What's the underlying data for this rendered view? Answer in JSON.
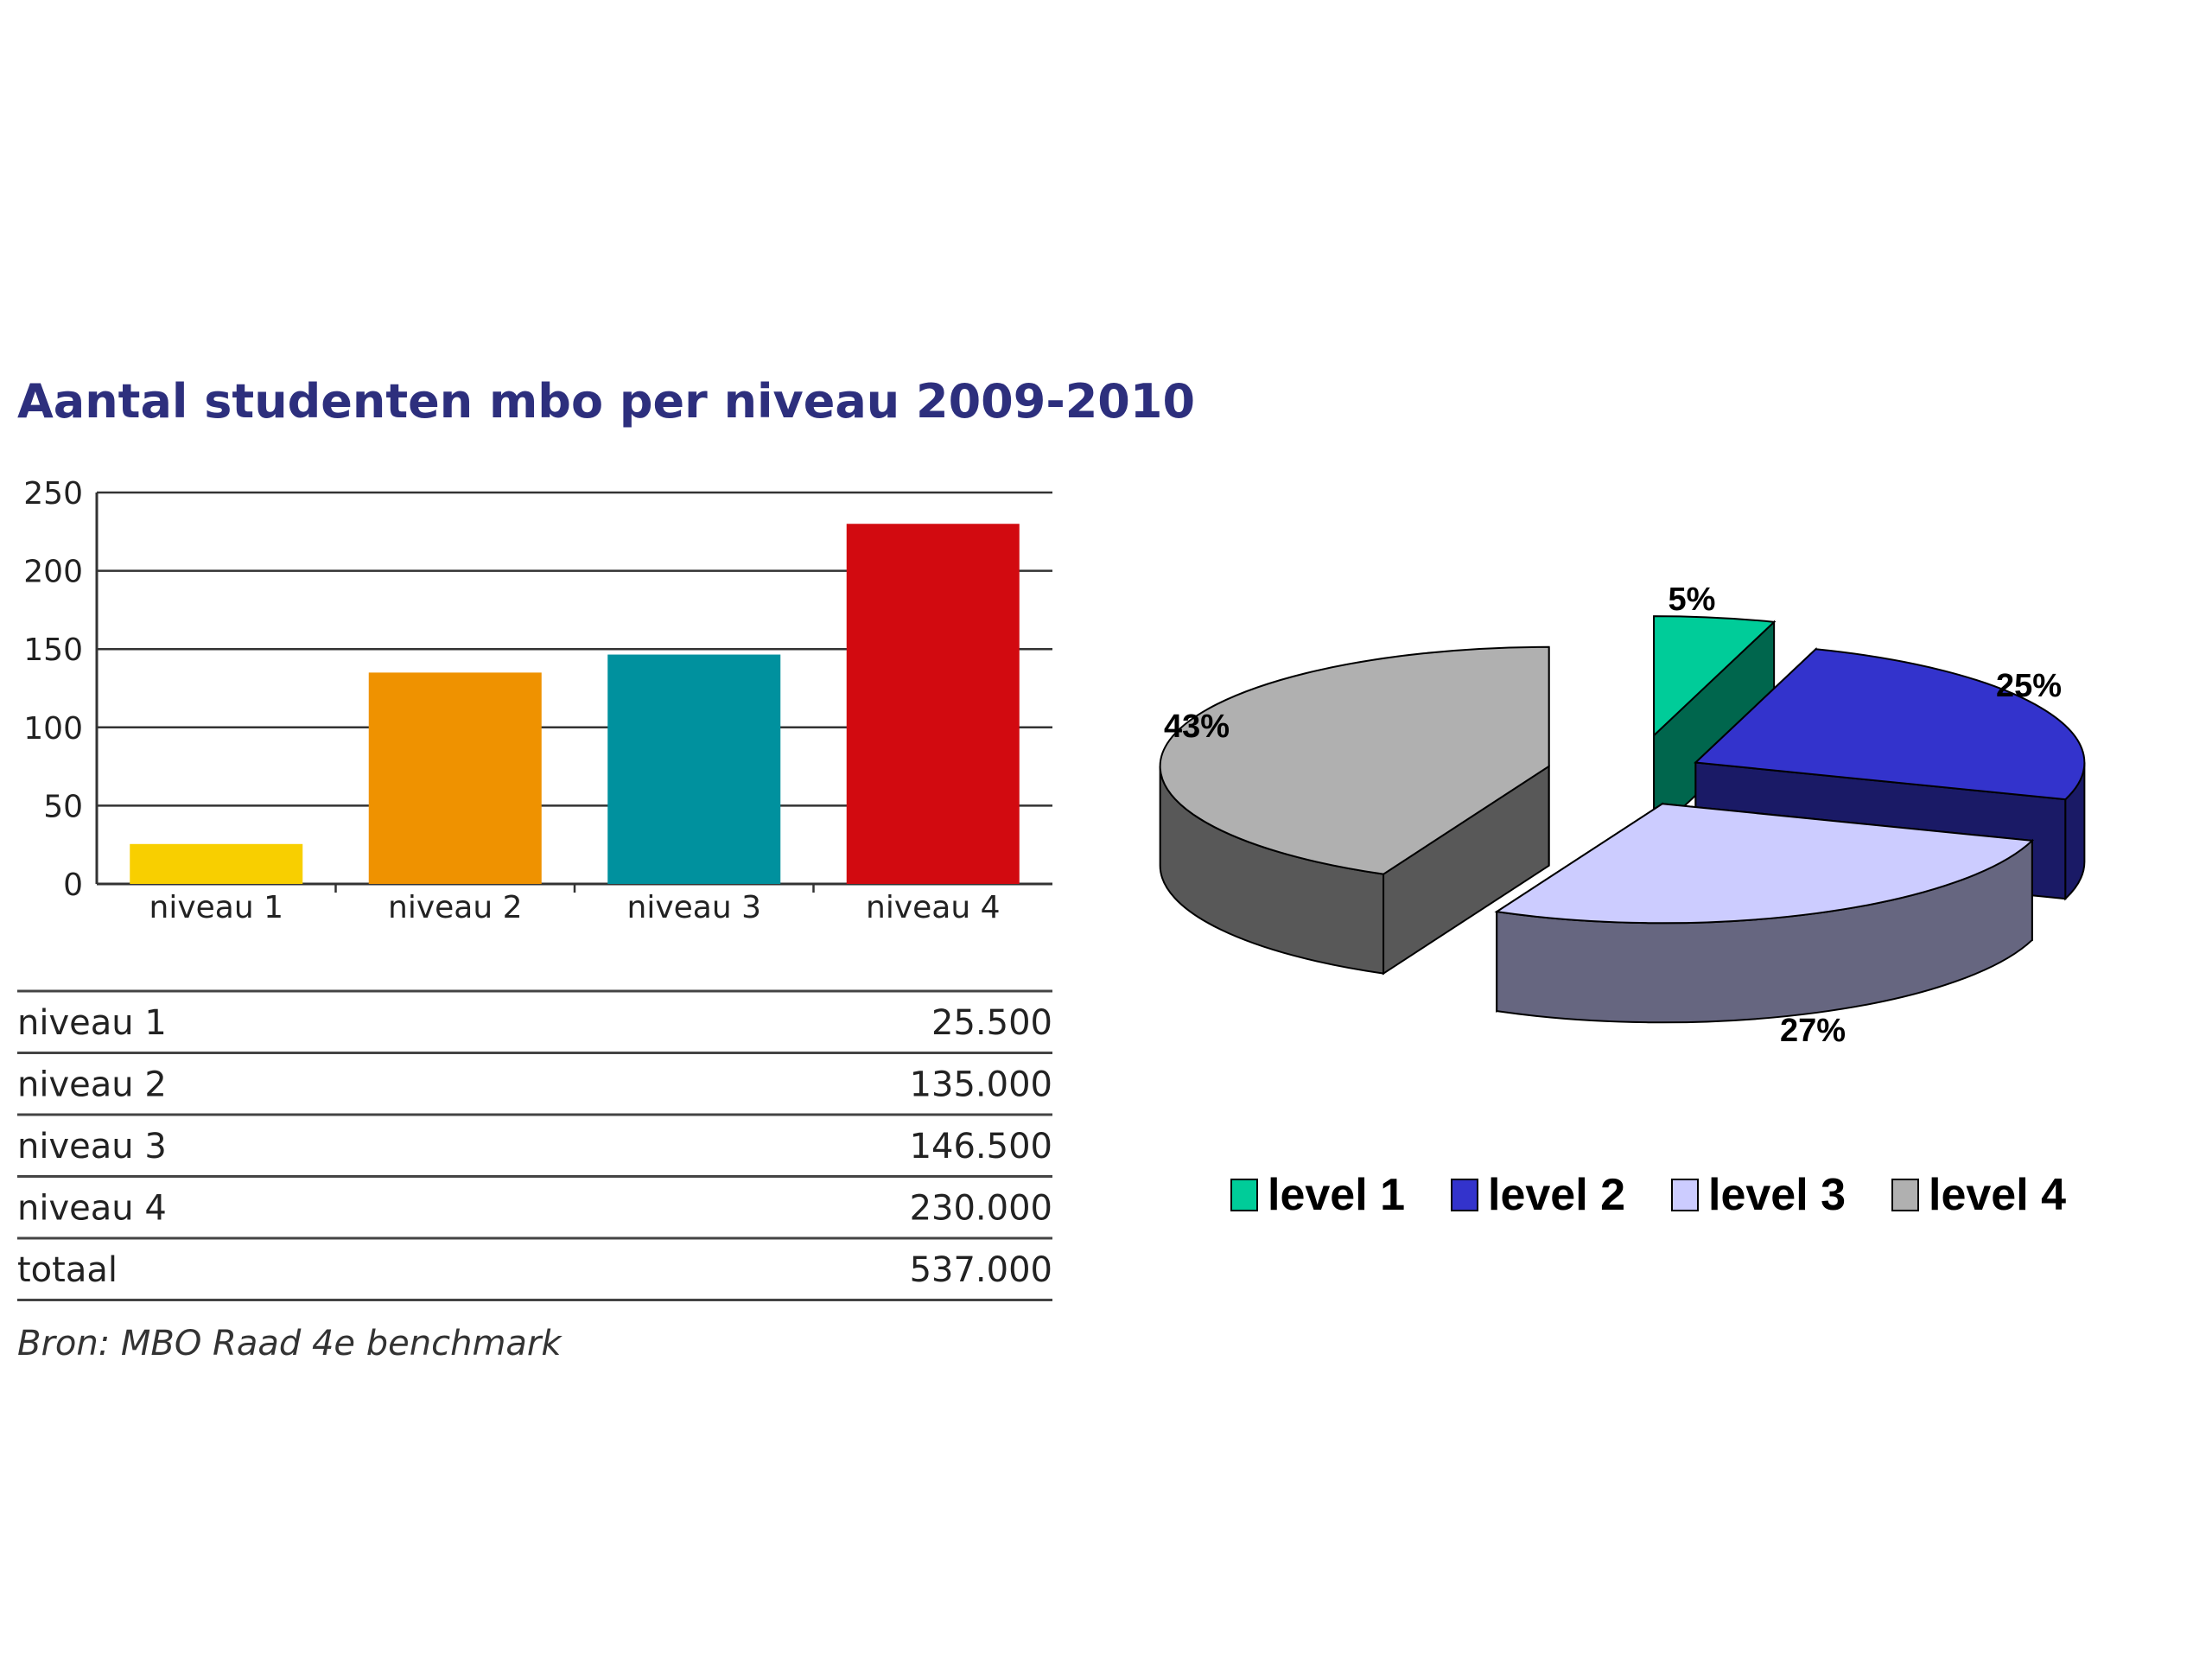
{
  "title": "Aantal studenten mbo per niveau 2009-2010",
  "chart_data": [
    {
      "type": "bar",
      "title": "Aantal studenten mbo per niveau 2009-2010",
      "categories": [
        "niveau 1",
        "niveau 2",
        "niveau 3",
        "niveau 4"
      ],
      "values": [
        25.5,
        135,
        146.5,
        230
      ],
      "ylim": [
        0,
        250
      ],
      "yticks": [
        "0",
        "50",
        "100",
        "150",
        "200",
        "250"
      ],
      "colors": [
        "#f8cf00",
        "#ef9200",
        "#00919e",
        "#d20a10"
      ],
      "xlabel": "",
      "ylabel": ""
    },
    {
      "type": "pie",
      "labels": [
        "level 1",
        "level 2",
        "level 3",
        "level 4"
      ],
      "values": [
        5,
        25,
        27,
        43
      ],
      "value_labels": [
        "5%",
        "25%",
        "27%",
        "43%"
      ],
      "colors": [
        "#00cc99",
        "#3333cc",
        "#ccccff",
        "#b0b0b0"
      ],
      "legend": "bottom"
    }
  ],
  "table": {
    "rows": [
      {
        "label": "niveau 1",
        "value": "25.500"
      },
      {
        "label": "niveau 2",
        "value": "135.000"
      },
      {
        "label": "niveau 3",
        "value": "146.500"
      },
      {
        "label": "niveau 4",
        "value": "230.000"
      },
      {
        "label": "totaal",
        "value": "537.000"
      }
    ]
  },
  "source": "Bron: MBO Raad 4e benchmark"
}
